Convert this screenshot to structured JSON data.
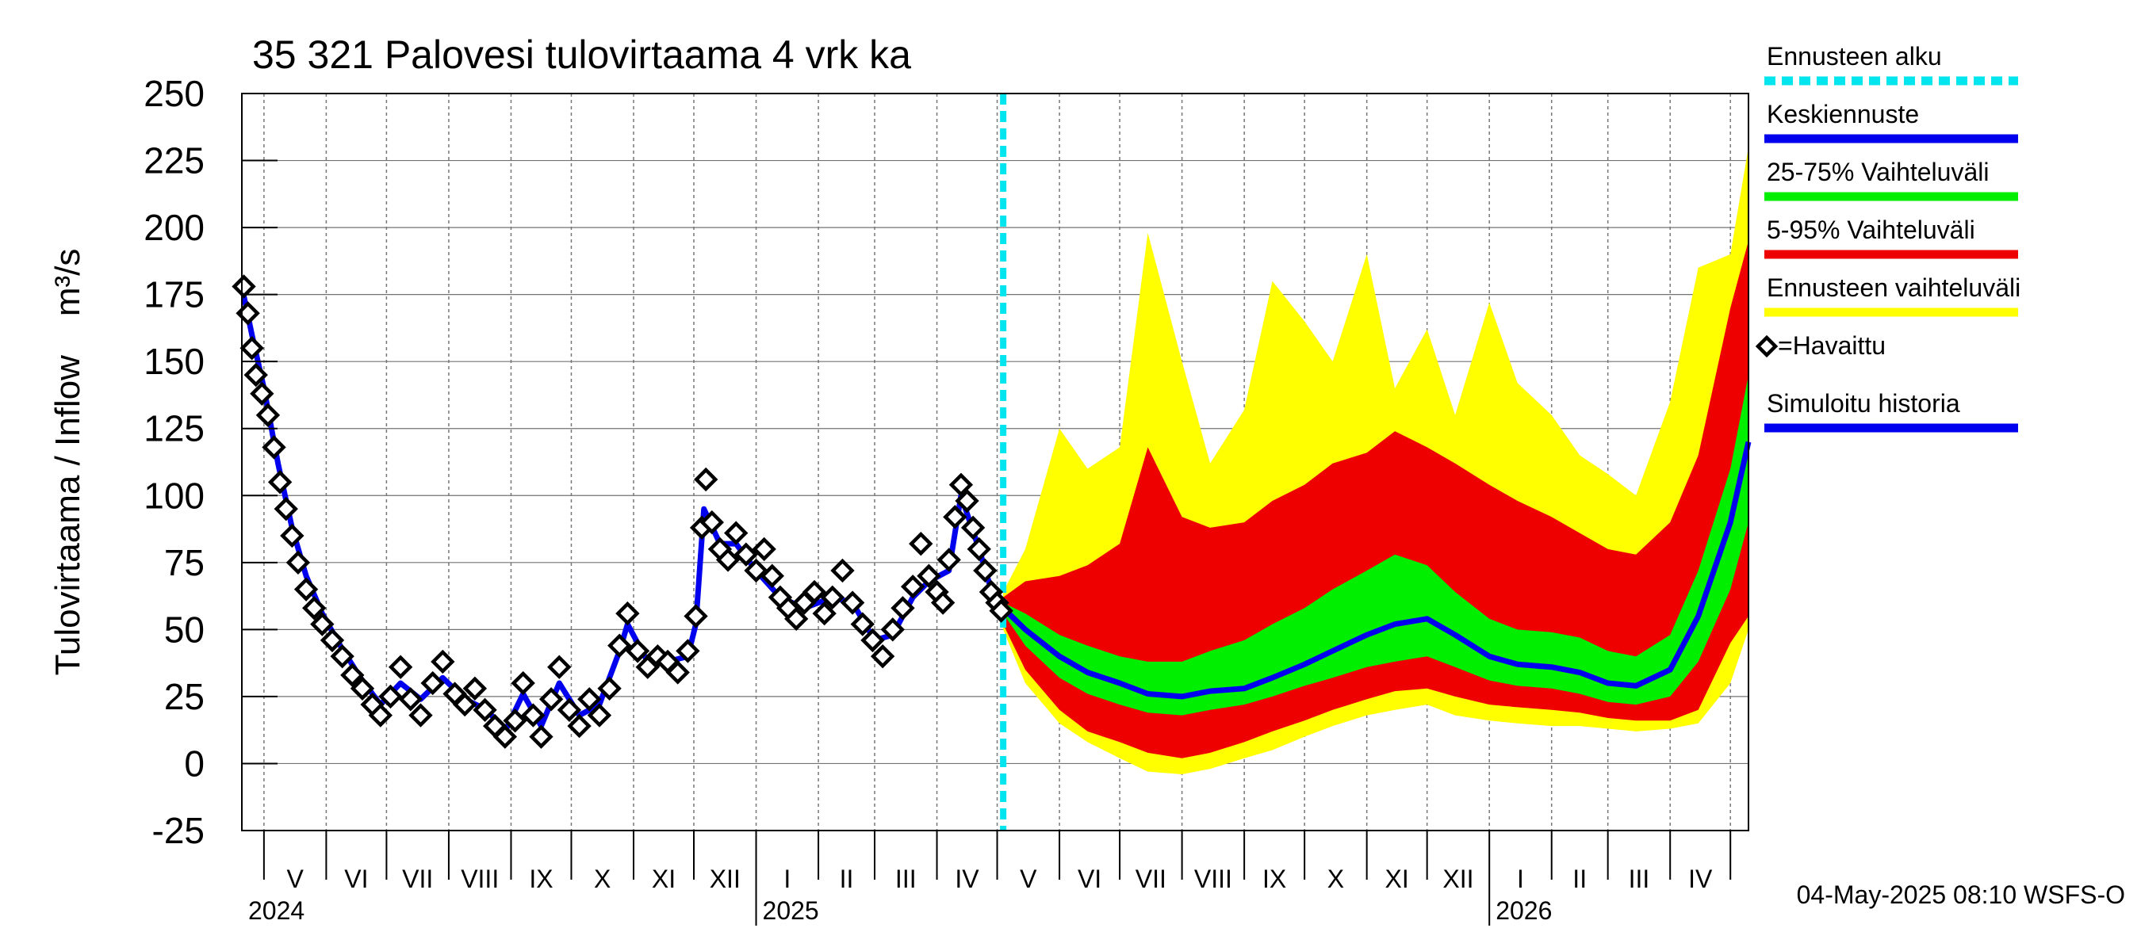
{
  "chart_data": {
    "type": "area",
    "title": "35 321 Palovesi tulovirtaama 4 vrk ka",
    "ylabel": "Tulovirtaama / Inflow    m³/s",
    "ylim": [
      -25,
      250
    ],
    "y_ticks": [
      -25,
      0,
      25,
      50,
      75,
      100,
      125,
      150,
      175,
      200,
      225,
      250
    ],
    "x_range": [
      "2024-04-20",
      "2026-05-10"
    ],
    "forecast_start": "2025-05-04",
    "months": [
      {
        "label": "V",
        "start": "2024-05-01"
      },
      {
        "label": "VI",
        "start": "2024-06-01"
      },
      {
        "label": "VII",
        "start": "2024-07-01"
      },
      {
        "label": "VIII",
        "start": "2024-08-01"
      },
      {
        "label": "IX",
        "start": "2024-09-01"
      },
      {
        "label": "X",
        "start": "2024-10-01"
      },
      {
        "label": "XI",
        "start": "2024-11-01"
      },
      {
        "label": "XII",
        "start": "2024-12-01"
      },
      {
        "label": "I",
        "start": "2025-01-01"
      },
      {
        "label": "II",
        "start": "2025-02-01"
      },
      {
        "label": "III",
        "start": "2025-03-01"
      },
      {
        "label": "IV",
        "start": "2025-04-01"
      },
      {
        "label": "V",
        "start": "2025-05-01"
      },
      {
        "label": "VI",
        "start": "2025-06-01"
      },
      {
        "label": "VII",
        "start": "2025-07-01"
      },
      {
        "label": "VIII",
        "start": "2025-08-01"
      },
      {
        "label": "IX",
        "start": "2025-09-01"
      },
      {
        "label": "X",
        "start": "2025-10-01"
      },
      {
        "label": "XI",
        "start": "2025-11-01"
      },
      {
        "label": "XII",
        "start": "2025-12-01"
      },
      {
        "label": "I",
        "start": "2026-01-01"
      },
      {
        "label": "II",
        "start": "2026-02-01"
      },
      {
        "label": "III",
        "start": "2026-03-01"
      },
      {
        "label": "IV",
        "start": "2026-04-01"
      },
      {
        "label": "",
        "start": "2026-05-01"
      }
    ],
    "years": [
      {
        "label": "2024",
        "date": "2024-04-20"
      },
      {
        "label": "2025",
        "date": "2025-01-01"
      },
      {
        "label": "2026",
        "date": "2026-01-01"
      }
    ],
    "legend": [
      {
        "label": "Ennusteen alku",
        "color": "#00e5ee",
        "style": "dashed"
      },
      {
        "label": "Keskiennuste",
        "color": "#0000ee",
        "style": "line"
      },
      {
        "label": "25-75% Vaihteluväli",
        "color": "#00ee00",
        "style": "line"
      },
      {
        "label": "5-95% Vaihteluväli",
        "color": "#ee0000",
        "style": "line"
      },
      {
        "label": "Ennusteen vaihteluväli",
        "color": "#ffff00",
        "style": "line"
      },
      {
        "label": "=Havaittu",
        "color": "#000000",
        "style": "diamond"
      },
      {
        "label": "Simuloitu historia",
        "color": "#0000ee",
        "style": "line"
      }
    ],
    "footer": "04-May-2025 08:10 WSFS-O",
    "observed": [
      [
        "2024-04-21",
        178
      ],
      [
        "2024-04-23",
        168
      ],
      [
        "2024-04-25",
        155
      ],
      [
        "2024-04-27",
        145
      ],
      [
        "2024-04-30",
        138
      ],
      [
        "2024-05-03",
        130
      ],
      [
        "2024-05-06",
        118
      ],
      [
        "2024-05-09",
        105
      ],
      [
        "2024-05-12",
        95
      ],
      [
        "2024-05-15",
        85
      ],
      [
        "2024-05-18",
        75
      ],
      [
        "2024-05-22",
        65
      ],
      [
        "2024-05-26",
        58
      ],
      [
        "2024-05-30",
        52
      ],
      [
        "2024-06-04",
        46
      ],
      [
        "2024-06-09",
        40
      ],
      [
        "2024-06-14",
        33
      ],
      [
        "2024-06-19",
        28
      ],
      [
        "2024-06-24",
        22
      ],
      [
        "2024-06-28",
        18
      ],
      [
        "2024-07-03",
        25
      ],
      [
        "2024-07-08",
        36
      ],
      [
        "2024-07-13",
        24
      ],
      [
        "2024-07-18",
        18
      ],
      [
        "2024-07-24",
        30
      ],
      [
        "2024-07-29",
        38
      ],
      [
        "2024-08-04",
        26
      ],
      [
        "2024-08-09",
        22
      ],
      [
        "2024-08-14",
        28
      ],
      [
        "2024-08-19",
        20
      ],
      [
        "2024-08-24",
        14
      ],
      [
        "2024-08-29",
        10
      ],
      [
        "2024-09-03",
        16
      ],
      [
        "2024-09-07",
        30
      ],
      [
        "2024-09-12",
        18
      ],
      [
        "2024-09-16",
        10
      ],
      [
        "2024-09-21",
        24
      ],
      [
        "2024-09-25",
        36
      ],
      [
        "2024-09-30",
        20
      ],
      [
        "2024-10-05",
        14
      ],
      [
        "2024-10-10",
        24
      ],
      [
        "2024-10-15",
        18
      ],
      [
        "2024-10-20",
        28
      ],
      [
        "2024-10-25",
        44
      ],
      [
        "2024-10-29",
        56
      ],
      [
        "2024-11-03",
        42
      ],
      [
        "2024-11-08",
        36
      ],
      [
        "2024-11-13",
        40
      ],
      [
        "2024-11-18",
        38
      ],
      [
        "2024-11-23",
        34
      ],
      [
        "2024-11-28",
        42
      ],
      [
        "2024-12-02",
        55
      ],
      [
        "2024-12-05",
        88
      ],
      [
        "2024-12-07",
        106
      ],
      [
        "2024-12-10",
        90
      ],
      [
        "2024-12-14",
        80
      ],
      [
        "2024-12-18",
        76
      ],
      [
        "2024-12-22",
        86
      ],
      [
        "2024-12-27",
        78
      ],
      [
        "2025-01-01",
        72
      ],
      [
        "2025-01-05",
        80
      ],
      [
        "2025-01-09",
        70
      ],
      [
        "2025-01-13",
        62
      ],
      [
        "2025-01-17",
        58
      ],
      [
        "2025-01-21",
        54
      ],
      [
        "2025-01-25",
        60
      ],
      [
        "2025-01-30",
        64
      ],
      [
        "2025-02-04",
        56
      ],
      [
        "2025-02-08",
        62
      ],
      [
        "2025-02-13",
        72
      ],
      [
        "2025-02-18",
        60
      ],
      [
        "2025-02-23",
        52
      ],
      [
        "2025-02-28",
        46
      ],
      [
        "2025-03-05",
        40
      ],
      [
        "2025-03-10",
        50
      ],
      [
        "2025-03-15",
        58
      ],
      [
        "2025-03-20",
        66
      ],
      [
        "2025-03-24",
        82
      ],
      [
        "2025-03-28",
        70
      ],
      [
        "2025-04-01",
        64
      ],
      [
        "2025-04-04",
        60
      ],
      [
        "2025-04-07",
        76
      ],
      [
        "2025-04-10",
        92
      ],
      [
        "2025-04-13",
        104
      ],
      [
        "2025-04-16",
        98
      ],
      [
        "2025-04-19",
        88
      ],
      [
        "2025-04-22",
        80
      ],
      [
        "2025-04-25",
        72
      ],
      [
        "2025-04-28",
        64
      ],
      [
        "2025-05-01",
        60
      ],
      [
        "2025-05-03",
        57
      ]
    ],
    "simulated": [
      [
        "2024-04-20",
        178
      ],
      [
        "2024-04-25",
        160
      ],
      [
        "2024-05-01",
        140
      ],
      [
        "2024-05-08",
        112
      ],
      [
        "2024-05-15",
        88
      ],
      [
        "2024-05-22",
        70
      ],
      [
        "2024-05-30",
        56
      ],
      [
        "2024-06-08",
        44
      ],
      [
        "2024-06-18",
        32
      ],
      [
        "2024-06-28",
        22
      ],
      [
        "2024-07-08",
        30
      ],
      [
        "2024-07-18",
        24
      ],
      [
        "2024-07-29",
        32
      ],
      [
        "2024-08-09",
        24
      ],
      [
        "2024-08-20",
        20
      ],
      [
        "2024-08-29",
        12
      ],
      [
        "2024-09-07",
        26
      ],
      [
        "2024-09-16",
        14
      ],
      [
        "2024-09-25",
        30
      ],
      [
        "2024-10-05",
        18
      ],
      [
        "2024-10-15",
        22
      ],
      [
        "2024-10-25",
        42
      ],
      [
        "2024-10-29",
        52
      ],
      [
        "2024-11-08",
        38
      ],
      [
        "2024-11-18",
        38
      ],
      [
        "2024-11-28",
        40
      ],
      [
        "2024-12-02",
        52
      ],
      [
        "2024-12-06",
        95
      ],
      [
        "2024-12-14",
        82
      ],
      [
        "2024-12-22",
        82
      ],
      [
        "2025-01-01",
        72
      ],
      [
        "2025-01-13",
        62
      ],
      [
        "2025-01-25",
        58
      ],
      [
        "2025-02-08",
        62
      ],
      [
        "2025-02-18",
        60
      ],
      [
        "2025-03-01",
        46
      ],
      [
        "2025-03-10",
        48
      ],
      [
        "2025-03-20",
        62
      ],
      [
        "2025-03-28",
        68
      ],
      [
        "2025-04-07",
        72
      ],
      [
        "2025-04-13",
        100
      ],
      [
        "2025-04-22",
        80
      ],
      [
        "2025-04-28",
        65
      ],
      [
        "2025-05-04",
        58
      ]
    ],
    "forecast": {
      "dates": [
        "2025-05-04",
        "2025-05-15",
        "2025-06-01",
        "2025-06-15",
        "2025-07-01",
        "2025-07-15",
        "2025-08-01",
        "2025-08-15",
        "2025-09-01",
        "2025-09-15",
        "2025-10-01",
        "2025-10-15",
        "2025-11-01",
        "2025-11-15",
        "2025-12-01",
        "2025-12-15",
        "2026-01-01",
        "2026-01-15",
        "2026-02-01",
        "2026-02-15",
        "2026-03-01",
        "2026-03-15",
        "2026-04-01",
        "2026-04-15",
        "2026-05-01",
        "2026-05-10"
      ],
      "median": [
        58,
        50,
        40,
        34,
        30,
        26,
        25,
        27,
        28,
        32,
        37,
        42,
        48,
        52,
        54,
        48,
        40,
        37,
        36,
        34,
        30,
        29,
        35,
        55,
        90,
        120
      ],
      "p25": [
        56,
        44,
        32,
        26,
        22,
        19,
        18,
        20,
        22,
        25,
        29,
        32,
        36,
        38,
        40,
        36,
        31,
        29,
        28,
        26,
        23,
        22,
        25,
        38,
        65,
        90
      ],
      "p75": [
        60,
        56,
        48,
        44,
        40,
        38,
        38,
        42,
        46,
        52,
        58,
        65,
        72,
        78,
        74,
        64,
        54,
        50,
        49,
        47,
        42,
        40,
        48,
        72,
        110,
        145
      ],
      "p05": [
        52,
        35,
        20,
        12,
        8,
        4,
        2,
        4,
        8,
        12,
        16,
        20,
        24,
        27,
        28,
        25,
        22,
        21,
        20,
        19,
        17,
        16,
        16,
        20,
        45,
        55
      ],
      "p95": [
        62,
        68,
        70,
        74,
        82,
        118,
        92,
        88,
        90,
        98,
        104,
        112,
        116,
        124,
        118,
        112,
        104,
        98,
        92,
        86,
        80,
        78,
        90,
        115,
        170,
        195
      ],
      "min": [
        50,
        30,
        15,
        8,
        2,
        -3,
        -4,
        -2,
        2,
        5,
        10,
        14,
        18,
        20,
        22,
        18,
        16,
        15,
        14,
        14,
        13,
        12,
        13,
        15,
        30,
        50
      ],
      "max": [
        64,
        80,
        125,
        110,
        118,
        198,
        150,
        112,
        132,
        180,
        165,
        150,
        190,
        140,
        162,
        130,
        172,
        142,
        130,
        115,
        108,
        100,
        135,
        185,
        190,
        230
      ]
    }
  }
}
